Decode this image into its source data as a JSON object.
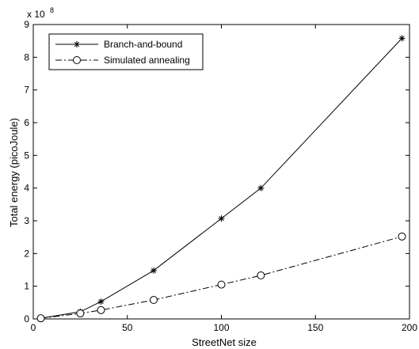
{
  "chart_data": {
    "type": "line",
    "xlabel": "StreetNet size",
    "ylabel": "Total energy (picoJoule)",
    "y_multiplier_label": "x 10",
    "y_multiplier_exponent": "8",
    "xlim": [
      0,
      200
    ],
    "ylim": [
      0,
      9
    ],
    "x_ticks": [
      "0",
      "50",
      "100",
      "150",
      "200"
    ],
    "y_ticks": [
      "0",
      "1",
      "2",
      "3",
      "4",
      "5",
      "6",
      "7",
      "8",
      "9"
    ],
    "grid": false,
    "legend_position": "top-left",
    "series": [
      {
        "name": "Branch-and-bound",
        "marker": "asterisk",
        "line_style": "solid",
        "color": "#000000",
        "x": [
          4,
          25,
          36,
          64,
          100,
          121,
          196
        ],
        "y": [
          0.02,
          0.22,
          0.53,
          1.48,
          3.07,
          4.0,
          8.58
        ]
      },
      {
        "name": "Simulated annealing",
        "marker": "circle",
        "line_style": "dash-dot",
        "color": "#000000",
        "x": [
          4,
          25,
          36,
          64,
          100,
          121,
          196
        ],
        "y": [
          0.02,
          0.17,
          0.27,
          0.58,
          1.05,
          1.33,
          2.52
        ]
      }
    ]
  }
}
